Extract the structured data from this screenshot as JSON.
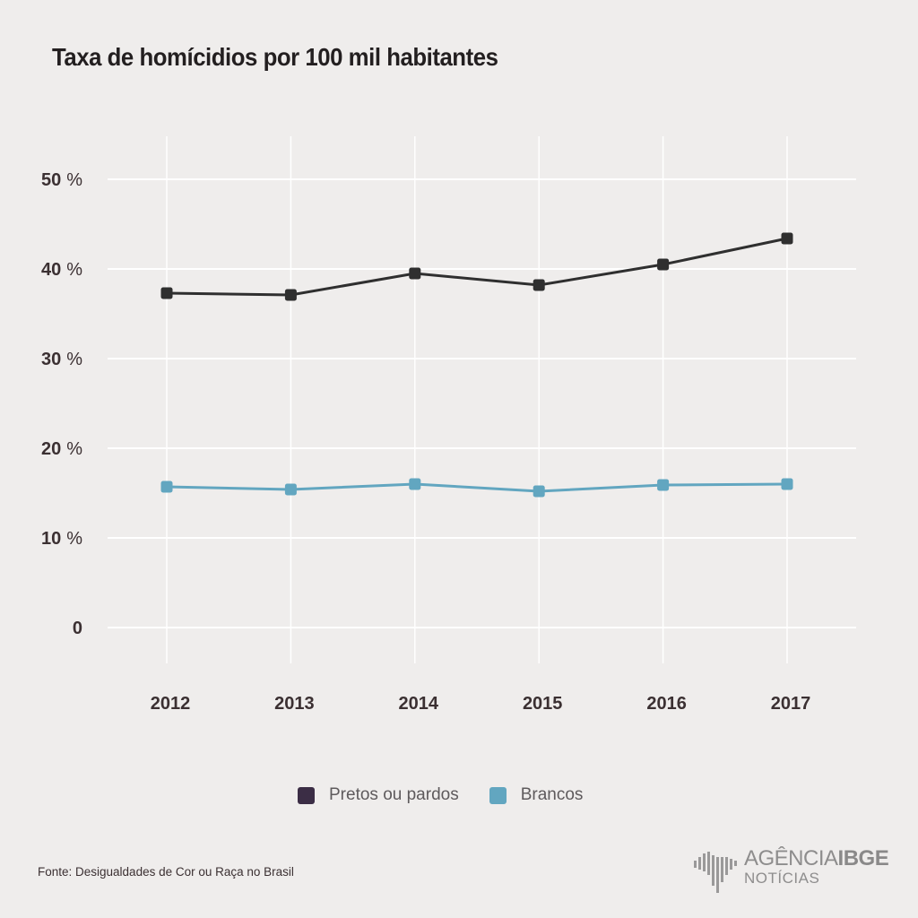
{
  "chart_data": {
    "type": "line",
    "title": "Taxa de homícidios por 100 mil habitantes",
    "xlabel": "",
    "ylabel": "",
    "categories": [
      "2012",
      "2013",
      "2014",
      "2015",
      "2016",
      "2017"
    ],
    "ylim": [
      0,
      50
    ],
    "yticks": [
      {
        "value": 50,
        "num": "50",
        "suffix": "%"
      },
      {
        "value": 40,
        "num": "40",
        "suffix": "%"
      },
      {
        "value": 30,
        "num": "30",
        "suffix": "%"
      },
      {
        "value": 20,
        "num": "20",
        "suffix": "%"
      },
      {
        "value": 10,
        "num": "10",
        "suffix": "%"
      },
      {
        "value": 0,
        "num": "0",
        "suffix": ""
      }
    ],
    "grid": true,
    "legend_position": "bottom-center",
    "series": [
      {
        "name": "Pretos ou pardos",
        "color": "#2f2f2f",
        "legend_color": "#3b2d45",
        "values": [
          37.3,
          37.1,
          39.5,
          38.2,
          40.5,
          43.4
        ]
      },
      {
        "name": "Brancos",
        "color": "#62a6c0",
        "legend_color": "#62a6c0",
        "values": [
          15.7,
          15.4,
          16.0,
          15.2,
          15.9,
          16.0
        ]
      }
    ]
  },
  "footer": {
    "source": "Fonte: Desigualdades de Cor ou Raça no Brasil",
    "logo_main": "AGÊNCIA",
    "logo_bold": "IBGE",
    "logo_sub": "NOTÍCIAS"
  }
}
